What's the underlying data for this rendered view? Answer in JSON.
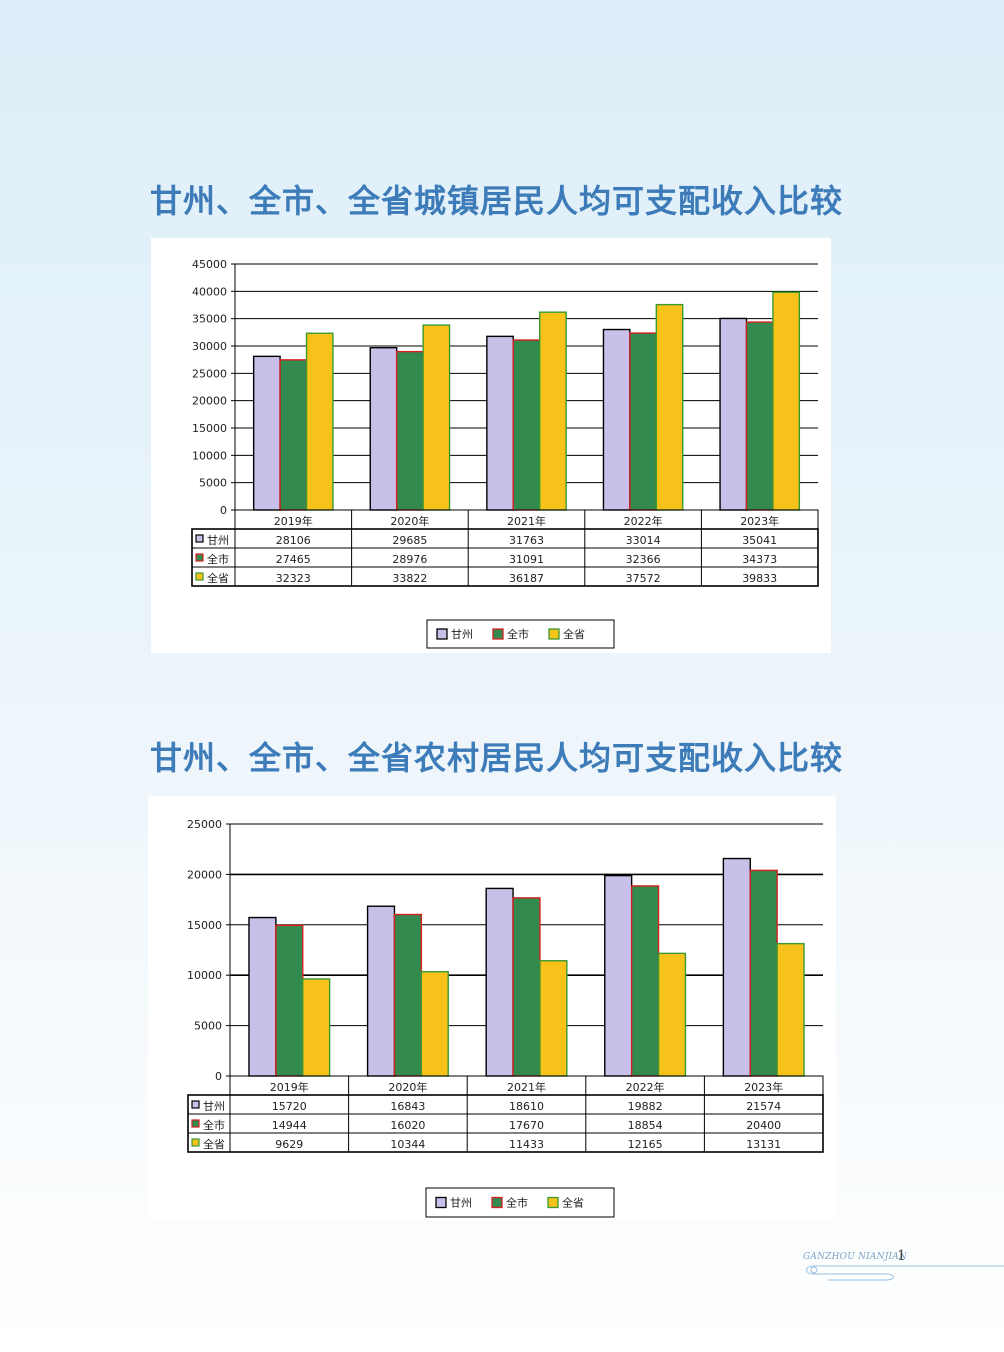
{
  "titles": {
    "urban": "甘州、全市、全省城镇居民人均可支配收入比较",
    "rural": "甘州、全市、全省农村居民人均可支配收入比较"
  },
  "colors": {
    "title": "#3d7cb8",
    "ganzhou_fill": "#c8c0e8",
    "ganzhou_border": "#000000",
    "city_fill": "#338a4e",
    "city_border": "#d62020",
    "province_fill": "#f7c21a",
    "province_border": "#3a9a32"
  },
  "chart_data": [
    {
      "type": "bar",
      "categories": [
        "2019年",
        "2020年",
        "2021年",
        "2022年",
        "2023年"
      ],
      "series": [
        {
          "name": "甘州",
          "values": [
            28106,
            29685,
            31763,
            33014,
            35041
          ]
        },
        {
          "name": "全市",
          "values": [
            27465,
            28976,
            31091,
            32366,
            34373
          ]
        },
        {
          "name": "全省",
          "values": [
            32323,
            33822,
            36187,
            37572,
            39833
          ]
        }
      ],
      "table_values": [
        [
          "28106",
          "29685",
          "31763",
          "33014",
          "35041"
        ],
        [
          "27465",
          "28976",
          "31091",
          "32366",
          "34373"
        ],
        [
          "32323",
          "33822",
          "36187",
          "37572",
          "39833"
        ]
      ],
      "ylim": [
        0,
        45000
      ],
      "yticks": [
        0,
        5000,
        10000,
        15000,
        20000,
        25000,
        30000,
        35000,
        40000,
        45000
      ],
      "grid": true,
      "legend": "bottom-center",
      "data_table": true
    },
    {
      "type": "bar",
      "categories": [
        "2019年",
        "2020年",
        "2021年",
        "2022年",
        "2023年"
      ],
      "series": [
        {
          "name": "甘州",
          "values": [
            15720,
            16843,
            18610,
            19882,
            21574
          ]
        },
        {
          "name": "全市",
          "values": [
            14944,
            16020,
            17670,
            18854,
            20400
          ]
        },
        {
          "name": "全省",
          "values": [
            9629,
            10344,
            11433,
            12165,
            13131
          ]
        }
      ],
      "table_values": [
        [
          "15720",
          "16843",
          "18610",
          "19882",
          "21574"
        ],
        [
          "14944",
          "16020",
          "17670",
          "18854",
          "20400"
        ],
        [
          "9629",
          "10344",
          "11433",
          "12165",
          "13131"
        ]
      ],
      "ylim": [
        0,
        25000
      ],
      "yticks": [
        0,
        5000,
        10000,
        15000,
        20000,
        25000
      ],
      "grid": true,
      "legend": "bottom-center",
      "data_table": true
    }
  ],
  "footer": {
    "text": "GANZHOU NIANJIAN",
    "page": "1"
  }
}
